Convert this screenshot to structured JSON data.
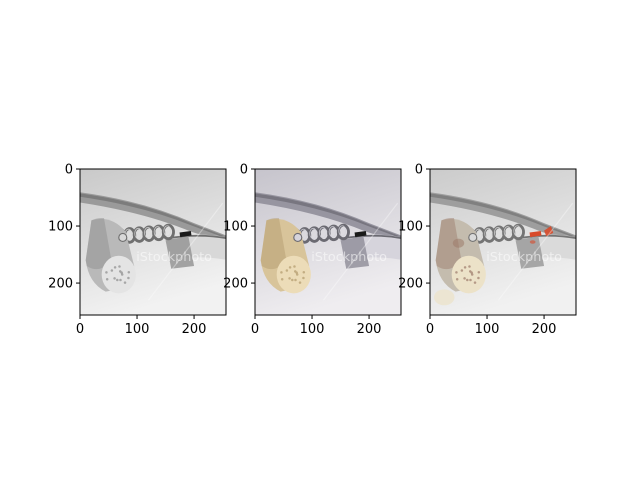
{
  "figure": {
    "panels": [
      {
        "id": "grayscale",
        "xticks": [
          "0",
          "100",
          "200"
        ],
        "yticks": [
          "0",
          "100",
          "200"
        ],
        "palette": {
          "bg_top": "#c9c9c9",
          "bg_bottom": "#f2f2f2",
          "metal_dark": "#6f6f6f",
          "metal_mid": "#9a9a9a",
          "metal_light": "#d8d8d8",
          "cork_main": "#b9b9b9",
          "cork_shadow": "#8c8c8c",
          "cork_end": "#e4e4e4",
          "accent": "#1a1a1a"
        }
      },
      {
        "id": "color",
        "xticks": [
          "0",
          "100",
          "200"
        ],
        "yticks": [
          "0",
          "100",
          "200"
        ],
        "palette": {
          "bg_top": "#c6c4cc",
          "bg_bottom": "#efedf0",
          "metal_dark": "#6b6a72",
          "metal_mid": "#9795a0",
          "metal_light": "#d6d4dc",
          "cork_main": "#d8c49a",
          "cork_shadow": "#b29a6c",
          "cork_end": "#ecdcb8",
          "accent": "#1a1a1a"
        }
      },
      {
        "id": "colorized",
        "xticks": [
          "0",
          "100",
          "200"
        ],
        "yticks": [
          "0",
          "100",
          "200"
        ],
        "palette": {
          "bg_top": "#cbcbcb",
          "bg_bottom": "#f1f1f1",
          "metal_dark": "#747474",
          "metal_mid": "#9e9e9e",
          "metal_light": "#dadada",
          "cork_main": "#c4bcae",
          "cork_shadow": "#9c7a6a",
          "cork_end": "#ece2c8",
          "accent": "#d84a2a"
        }
      }
    ],
    "watermark": "iStockphoto"
  }
}
